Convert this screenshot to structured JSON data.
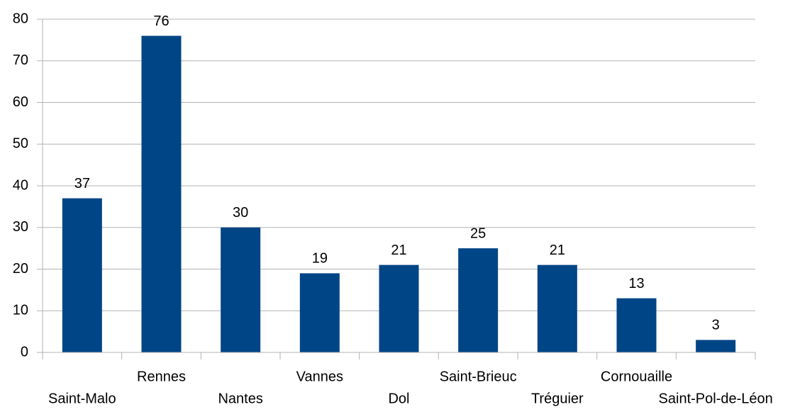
{
  "chart_data": {
    "type": "bar",
    "categories": [
      "Saint-Malo",
      "Rennes",
      "Nantes",
      "Vannes",
      "Dol",
      "Saint-Brieuc",
      "Tréguier",
      "Cornouaille",
      "Saint-Pol-de-Léon"
    ],
    "values": [
      37,
      76,
      30,
      19,
      21,
      25,
      21,
      13,
      3
    ],
    "color": "#004586",
    "ylim": [
      0,
      80
    ],
    "yticks": [
      0,
      10,
      20,
      30,
      40,
      50,
      60,
      70,
      80
    ],
    "grid": true
  }
}
